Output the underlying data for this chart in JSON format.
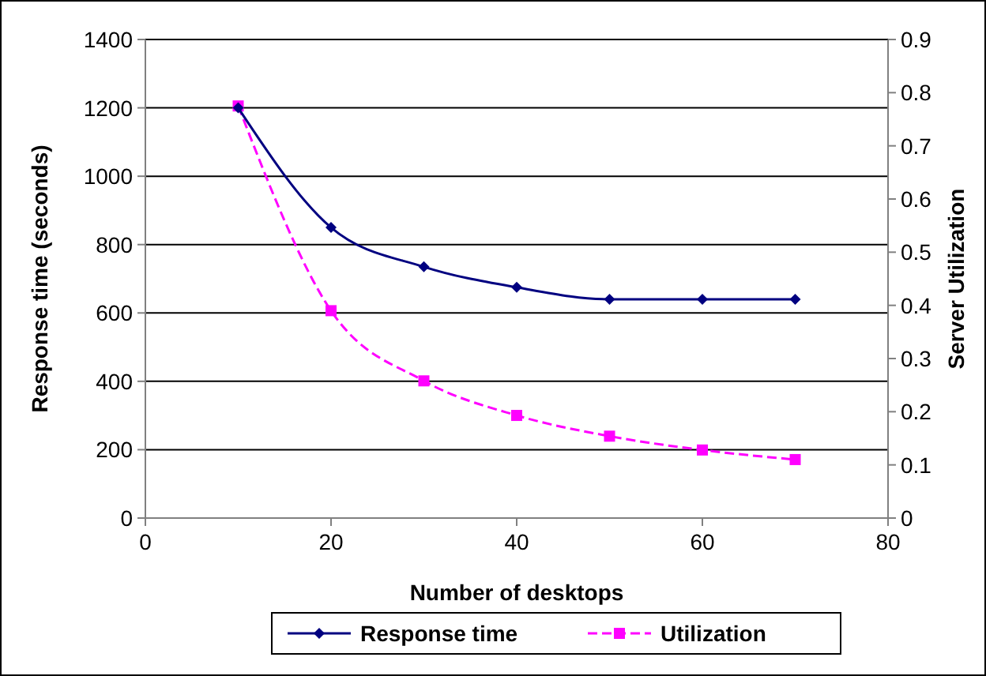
{
  "chart_data": {
    "type": "line",
    "xlabel": "Number of desktops",
    "ylabel": "Response time (seconds)",
    "y2label": "Server Utilization",
    "xlim": [
      0,
      80
    ],
    "xticks": [
      0,
      20,
      40,
      60,
      80
    ],
    "ylim": [
      0,
      1400
    ],
    "yticks": [
      0,
      200,
      400,
      600,
      800,
      1000,
      1200,
      1400
    ],
    "y2lim": [
      0,
      0.9
    ],
    "y2ticks": [
      0,
      0.1,
      0.2,
      0.3,
      0.4,
      0.5,
      0.6,
      0.7,
      0.8,
      0.9
    ],
    "grid": "y",
    "legend": "bottom",
    "x": [
      10,
      20,
      30,
      40,
      50,
      60,
      70
    ],
    "series": [
      {
        "name": "Response time",
        "color": "#000080",
        "marker": "diamond",
        "line_style": "solid",
        "values": [
          1200,
          850,
          735,
          675,
          640,
          640,
          640
        ]
      },
      {
        "name": "Utilization",
        "color": "#ff00ff",
        "marker": "square",
        "line_style": "dashed",
        "axis": "y2",
        "values": [
          0.775,
          0.39,
          0.258,
          0.193,
          0.154,
          0.128,
          0.11
        ]
      }
    ]
  }
}
